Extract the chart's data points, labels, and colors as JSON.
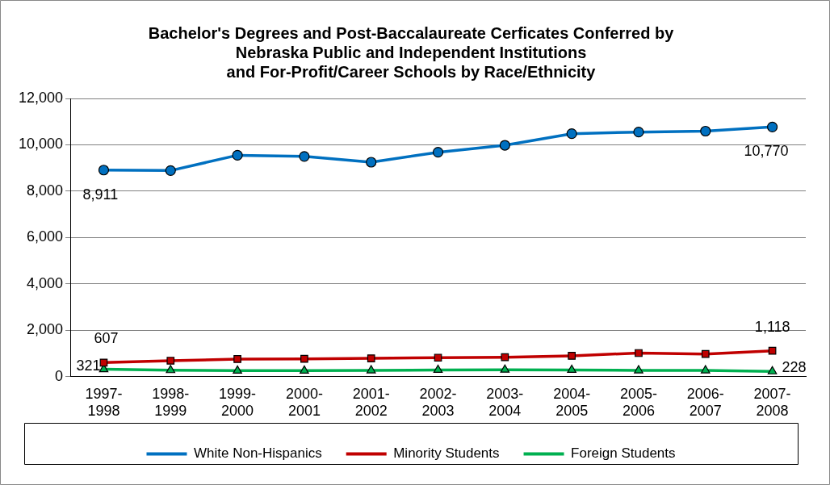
{
  "chart_data": {
    "type": "line",
    "title": "Bachelor's Degrees and Post-Baccalaureate Cerficates Conferred by\nNebraska Public and Independent Institutions\nand For-Profit/Career Schools by Race/Ethnicity",
    "categories": [
      "1997-1998",
      "1998-1999",
      "1999-2000",
      "2000-2001",
      "2001-2002",
      "2002-2003",
      "2003-2004",
      "2004-2005",
      "2005-2006",
      "2006-2007",
      "2007-2008"
    ],
    "series": [
      {
        "name": "White Non-Hispanics",
        "color": "#0070c0",
        "marker": "circle",
        "values": [
          8911,
          8890,
          9550,
          9500,
          9250,
          9680,
          9980,
          10480,
          10550,
          10590,
          10770
        ],
        "value_labels": [
          "8,911",
          null,
          null,
          null,
          null,
          null,
          null,
          null,
          null,
          null,
          "10,770"
        ]
      },
      {
        "name": "Minority Students",
        "color": "#c00000",
        "marker": "square",
        "values": [
          607,
          690,
          760,
          770,
          790,
          820,
          840,
          900,
          1020,
          980,
          1118
        ],
        "value_labels": [
          "607",
          null,
          null,
          null,
          null,
          null,
          null,
          null,
          null,
          null,
          "1,118"
        ]
      },
      {
        "name": "Foreign Students",
        "color": "#00b050",
        "marker": "triangle",
        "values": [
          321,
          280,
          260,
          260,
          270,
          290,
          300,
          290,
          270,
          270,
          228
        ],
        "value_labels": [
          "321",
          null,
          null,
          null,
          null,
          null,
          null,
          null,
          null,
          null,
          "228"
        ]
      }
    ],
    "ylim": [
      0,
      12000
    ],
    "yticks": [
      0,
      {
        "value": 2000,
        "label": "2,000"
      },
      {
        "value": 4000,
        "label": "4,000"
      },
      {
        "value": 6000,
        "label": "6,000"
      },
      {
        "value": 8000,
        "label": "8,000"
      },
      {
        "value": 10000,
        "label": "10,000"
      },
      {
        "value": 12000,
        "label": "12,000"
      }
    ],
    "grid": "y",
    "legend": "bottom"
  }
}
